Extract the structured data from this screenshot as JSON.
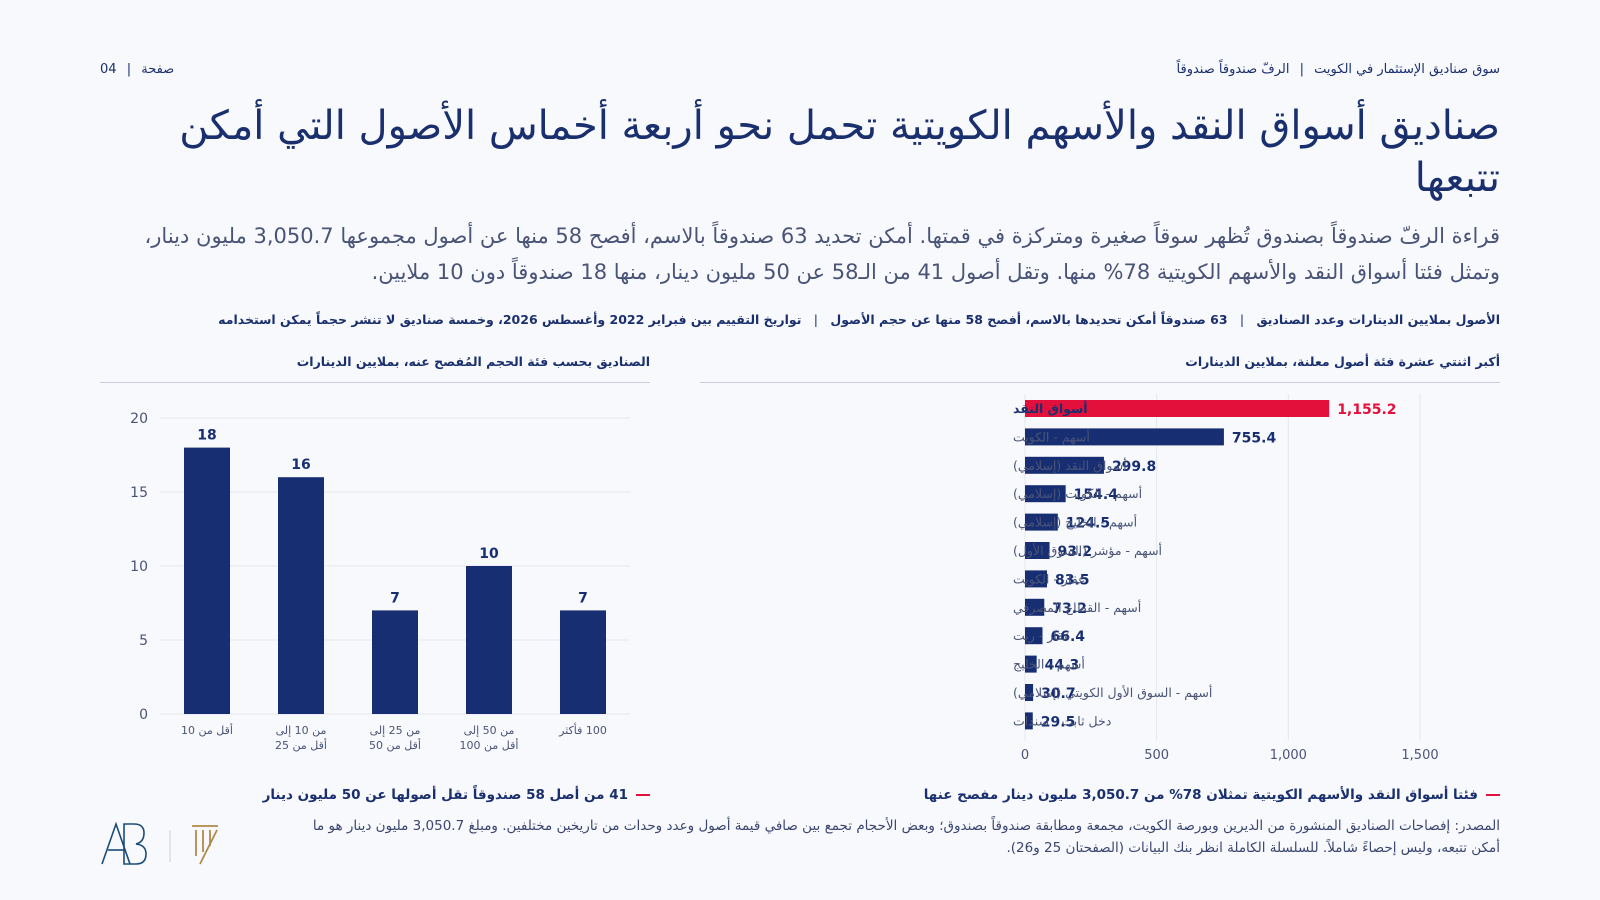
{
  "header": {
    "page_label": "صفحة",
    "page_number": "04",
    "section": "سوق صناديق الإستثمار في الكويت",
    "subsection": "الرفّ صندوقاً صندوقاً"
  },
  "title": "صناديق أسواق النقد والأسهم الكويتية تحمل نحو أربعة أخماس الأصول التي أمكن تتبعها",
  "lead": "قراءة الرفّ صندوقاً بصندوق تُظهر سوقاً صغيرة ومتركزة في قمتها. أمكن تحديد 63 صندوقاً بالاسم، أفصح 58 منها عن أصول مجموعها 3,050.7 مليون دينار، وتمثل فئتا أسواق النقد والأسهم الكويتية 78% منها. وتقل أصول 41 من الـ58 عن 50 مليون دينار، منها 18 صندوقاً دون 10 ملايين.",
  "meta": {
    "item1": "الأصول بملايين الدينارات وعدد الصناديق",
    "item2": "63 صندوقاً أمكن تحديدها بالاسم، أفصح 58 منها عن حجم الأصول",
    "item3": "تواريخ التقييم بين فبراير 2022 وأغسطس 2026، وخمسة صناديق لا تنشر حجماً يمكن استخدامه"
  },
  "right_panel": {
    "title": "أكبر اثنتي عشرة فئة أصول معلنة، بملايين الدينارات",
    "note": "فئتا أسواق النقد والأسهم الكويتية تمثلان 78% من 3,050.7 مليون دينار مفصح عنها"
  },
  "left_panel": {
    "title": "الصناديق بحسب فئة الحجم المُفصح عنه، بملايين الدينارات",
    "note": "41 من أصل 58 صندوقاً تقل أصولها عن 50 مليون دينار"
  },
  "source": "المصدر: إفصاحات الصناديق المنشورة من الديرين وبورصة الكويت، مجمعة ومطابقة صندوقاً بصندوق؛ وبعض الأحجام تجمع بين صافي قيمة أصول وعدد وحدات من تاريخين مختلفين. ومبلغ 3,050.7 مليون دينار هو ما أمكن تتبعه، وليس إحصاءً شاملاً. للسلسلة الكاملة انظر بنك البيانات (الصفحتان 25 و26).",
  "colors": {
    "navy": "#172f72",
    "accent": "#e3103b",
    "text": "#1a2f6e",
    "muted": "#4a5478"
  },
  "chart_data": [
    {
      "type": "bar",
      "orientation": "horizontal",
      "title": "أكبر اثنتي عشرة فئة أصول معلنة، بملايين الدينارات",
      "categories": [
        "أسواق النقد",
        "أسهم - الكويت",
        "أسواق النقد (إسلامي)",
        "أسهم - الكويت (إسلامي)",
        "أسهم - الخليج (إسلامي)",
        "أسهم - مؤشر (السوق الأول)",
        "عقار - الكويت",
        "أسهم - القطاع المصرفي",
        "عقار - ريت",
        "أسهم - الخليج",
        "أسهم - السوق الأول الكويتي (إسلامي)",
        "دخل ثابت - سندات"
      ],
      "values": [
        1155.2,
        755.4,
        299.8,
        154.4,
        124.5,
        93.2,
        83.5,
        73.2,
        66.4,
        44.3,
        30.7,
        29.5
      ],
      "value_labels": [
        "1,155.2",
        "755.4",
        "299.8",
        "154.4",
        "124.5",
        "93.2",
        "83.5",
        "73.2",
        "66.4",
        "44.3",
        "30.7",
        "29.5"
      ],
      "highlight_index": 0,
      "xlim": [
        0,
        1500
      ],
      "xticks": [
        0,
        500,
        1000,
        1500
      ],
      "xtick_labels": [
        "0",
        "500",
        "1,000",
        "1,500"
      ],
      "grid": true
    },
    {
      "type": "bar",
      "orientation": "vertical",
      "title": "الصناديق بحسب فئة الحجم المُفصح عنه، بملايين الدينارات",
      "categories": [
        [
          "أقل من 10"
        ],
        [
          "من 10 إلى",
          "أقل من 25"
        ],
        [
          "من 25 إلى",
          "أقل من 50"
        ],
        [
          "من 50 إلى",
          "أقل من 100"
        ],
        [
          "100 فأكثر"
        ]
      ],
      "values": [
        18,
        16,
        7,
        10,
        7
      ],
      "ylim": [
        0,
        20
      ],
      "yticks": [
        0,
        5,
        10,
        15,
        20
      ],
      "grid": true
    }
  ]
}
